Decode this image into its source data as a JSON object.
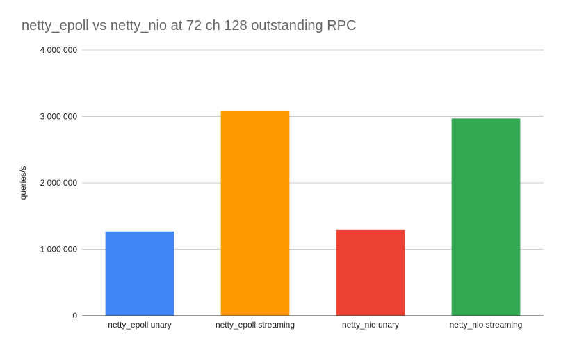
{
  "chart_data": {
    "type": "bar",
    "title": "netty_epoll vs netty_nio at 72 ch 128 outstanding RPC",
    "xlabel": "",
    "ylabel": "queries/s",
    "categories": [
      "netty_epoll unary",
      "netty_epoll streaming",
      "netty_nio unary",
      "netty_nio streaming"
    ],
    "values": [
      1270000,
      3080000,
      1290000,
      2970000
    ],
    "colors": [
      "#4285f4",
      "#ff9900",
      "#ea4335",
      "#34a853"
    ],
    "ylim": [
      0,
      4000000
    ],
    "yticks": [
      0,
      1000000,
      2000000,
      3000000,
      4000000
    ],
    "ytick_labels": [
      "0",
      "1 000 000",
      "2 000 000",
      "3 000 000",
      "4 000 000"
    ],
    "grid": true,
    "legend": "none"
  }
}
